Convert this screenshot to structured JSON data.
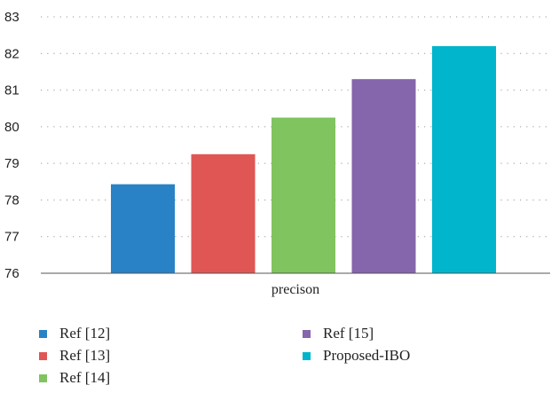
{
  "chart_data": {
    "type": "bar",
    "categories": [
      "precison"
    ],
    "series": [
      {
        "name": "Ref [12]",
        "values": [
          78.43
        ],
        "color": "#2a82c6"
      },
      {
        "name": "Ref [13]",
        "values": [
          79.25
        ],
        "color": "#e05654"
      },
      {
        "name": "Ref [14]",
        "values": [
          80.25
        ],
        "color": "#80c460"
      },
      {
        "name": "Ref [15]",
        "values": [
          81.3
        ],
        "color": "#8565ac"
      },
      {
        "name": "Proposed-IBO",
        "values": [
          82.2
        ],
        "color": "#00b5cc"
      }
    ],
    "ylim": [
      76,
      83
    ],
    "yticks": [
      "76",
      "77",
      "78",
      "79",
      "80",
      "81",
      "82",
      "83"
    ],
    "grid": true,
    "legend_position": "bottom"
  }
}
